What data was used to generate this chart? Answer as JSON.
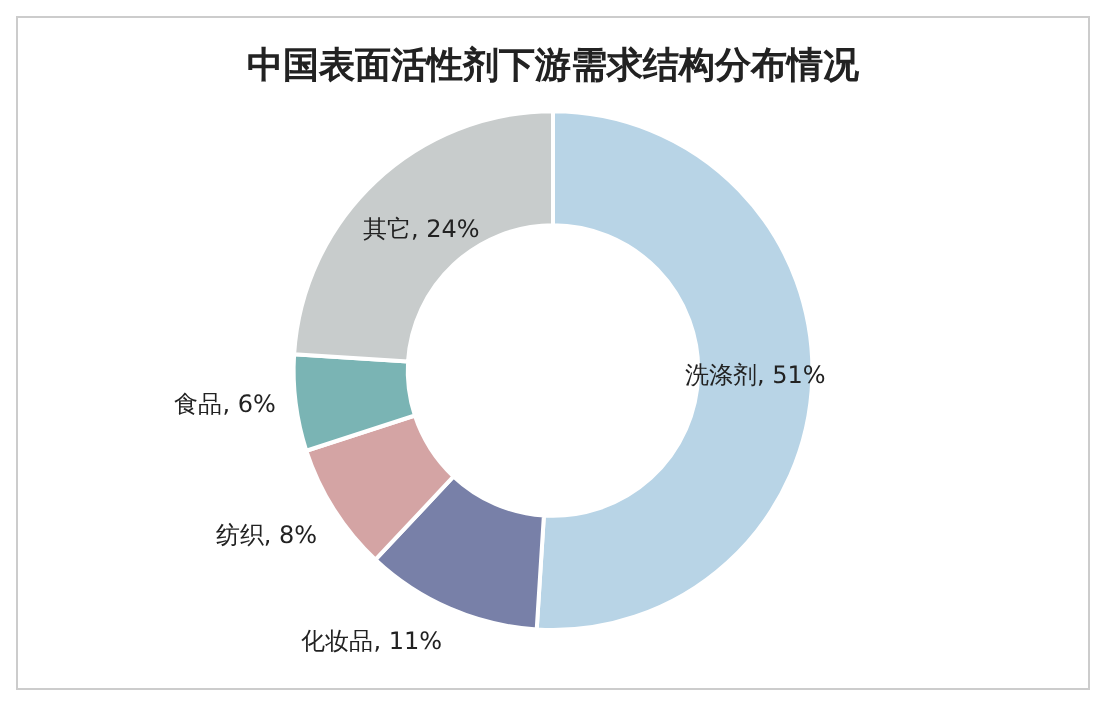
{
  "chart_data": {
    "type": "donut",
    "title": "中国表面活性剂下游需求结构分布情况",
    "categories": [
      "洗涤剂",
      "化妆品",
      "纺织",
      "食品",
      "其它"
    ],
    "values": [
      51,
      11,
      8,
      6,
      24
    ],
    "value_labels": [
      "51%",
      "11%",
      "8%",
      "6%",
      "24%"
    ],
    "colors": [
      "#b8d4e6",
      "#7880a8",
      "#d4a4a4",
      "#7ab4b4",
      "#c8cccc"
    ],
    "legend": false
  }
}
